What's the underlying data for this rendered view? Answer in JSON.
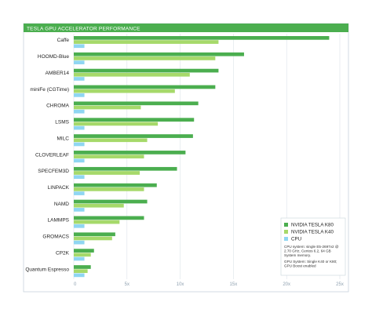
{
  "chart_data": {
    "type": "bar",
    "orientation": "horizontal",
    "title": "TESLA GPU ACCELERATOR PERFORMANCE",
    "categories": [
      "Caffe",
      "HOOMD-Blue",
      "AMBER14",
      "miniFe (CGTime)",
      "CHROMA",
      "LSMS",
      "MILC",
      "CLOVERLEAF",
      "SPECFEM3D",
      "LINPACK",
      "NAMD",
      "LAMMPS",
      "GROMACS",
      "CP2K",
      "Quantum Espresso"
    ],
    "series": [
      {
        "name": "NVIDIA TESLA K80",
        "color": "#4bae4f",
        "values": [
          24.0,
          16.0,
          13.6,
          13.3,
          11.7,
          11.3,
          11.2,
          10.5,
          9.7,
          7.8,
          6.9,
          6.6,
          3.9,
          1.9,
          1.6
        ]
      },
      {
        "name": "NVIDIA TESLA K40",
        "color": "#a6d96a",
        "values": [
          13.6,
          13.3,
          10.9,
          9.5,
          6.3,
          7.9,
          6.9,
          6.6,
          6.2,
          6.6,
          4.7,
          4.3,
          3.6,
          1.6,
          1.3
        ]
      },
      {
        "name": "CPU",
        "color": "#8fd6f2",
        "values": [
          1,
          1,
          1,
          1,
          1,
          1,
          1,
          1,
          1,
          1,
          1,
          1,
          1,
          1,
          1
        ]
      }
    ],
    "xlim": [
      0,
      25
    ],
    "xticks": [
      "0",
      "5x",
      "10x",
      "15x",
      "20x",
      "25x"
    ],
    "grid": true,
    "legend_position": "bottom-right",
    "notes": [
      "CPU system: single E5-2697v2 @",
      "2.70 GHz, Centos 6.2, 64 GB",
      "System memory.",
      "GPU System: Single K40 or K80;",
      "GPU Boost enabled"
    ]
  }
}
